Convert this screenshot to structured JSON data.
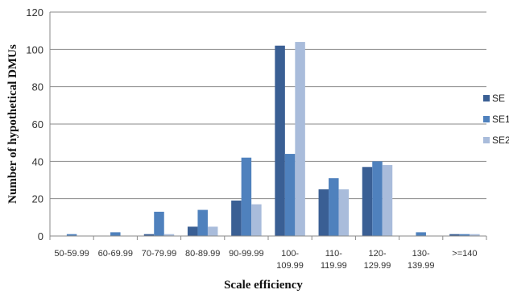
{
  "chart_data": {
    "type": "bar",
    "title": "",
    "xlabel": "Scale efficiency",
    "ylabel": "Number of hypothetical DMUs",
    "ylim": [
      0,
      120
    ],
    "yticks": [
      0,
      20,
      40,
      60,
      80,
      100,
      120
    ],
    "grid": true,
    "legend_position": "right",
    "categories": [
      [
        "50-59.99"
      ],
      [
        "60-69.99"
      ],
      [
        "70-79.99"
      ],
      [
        "80-89.99"
      ],
      [
        "90-99.99"
      ],
      [
        "100-",
        "109.99"
      ],
      [
        "110-",
        "119.99"
      ],
      [
        "120-",
        "129.99"
      ],
      [
        "130-",
        "139.99"
      ],
      [
        ">=140"
      ]
    ],
    "series": [
      {
        "name": "SE",
        "color": "#3a5f94",
        "values": [
          0,
          0,
          1,
          5,
          19,
          102,
          25,
          37,
          0,
          1
        ]
      },
      {
        "name": "SE1",
        "color": "#4f81bd",
        "values": [
          1,
          2,
          13,
          14,
          42,
          44,
          31,
          40,
          2,
          1
        ]
      },
      {
        "name": "SE2",
        "color": "#a9bcdb",
        "values": [
          0,
          0,
          1,
          5,
          17,
          104,
          25,
          38,
          0,
          1
        ]
      }
    ]
  }
}
